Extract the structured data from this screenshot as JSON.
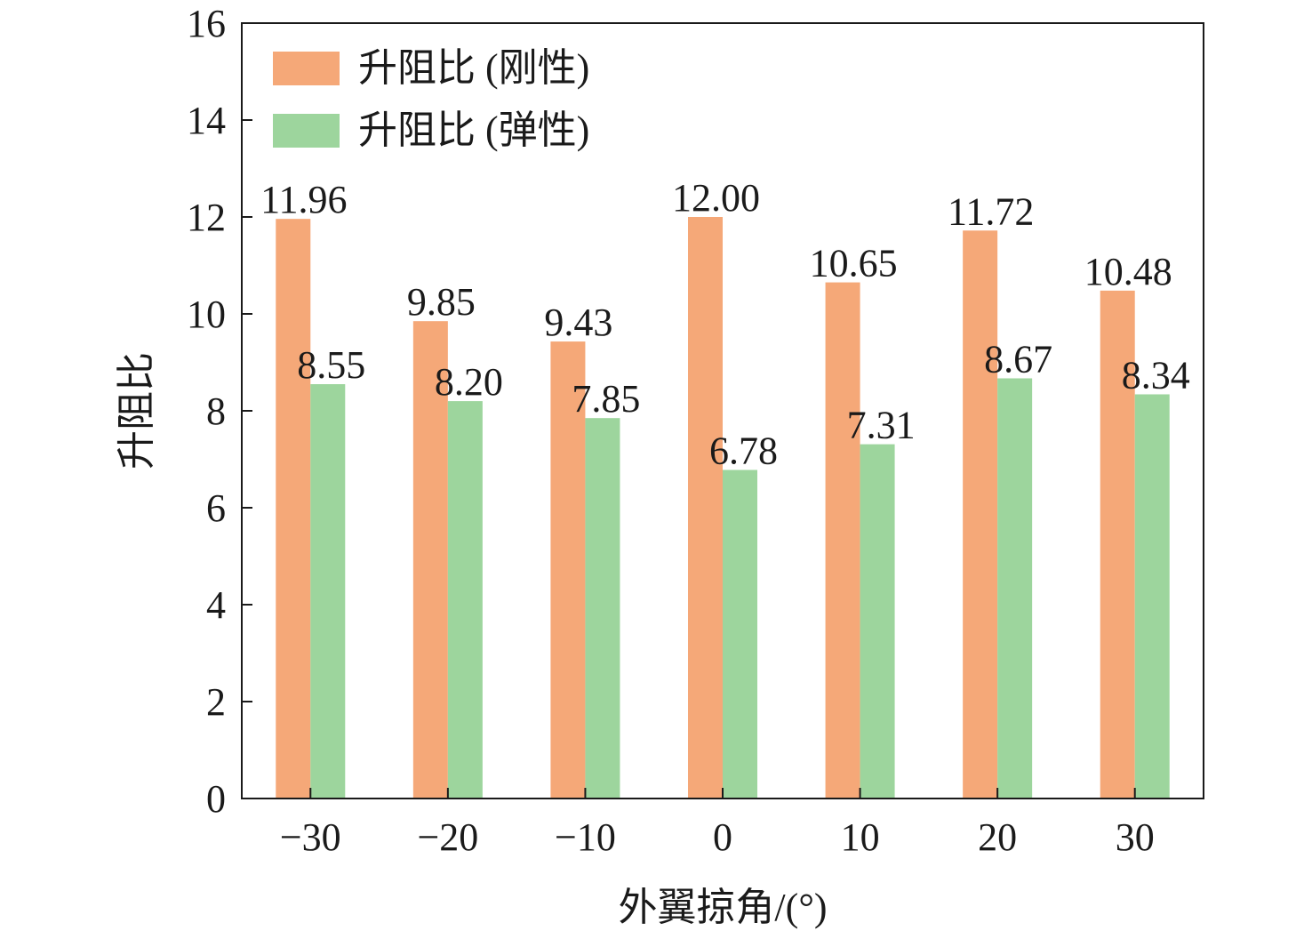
{
  "chart_data": {
    "type": "bar",
    "title": "",
    "xlabel": "外翼掠角/(°)",
    "ylabel": "升阻比",
    "categories": [
      "−30",
      "−20",
      "−10",
      "0",
      "10",
      "20",
      "30"
    ],
    "series": [
      {
        "name": "升阻比 (刚性)",
        "color": "#f5a878",
        "values": [
          11.96,
          9.85,
          9.43,
          12.0,
          10.65,
          11.72,
          10.48
        ],
        "labels": [
          "11.96",
          "9.85",
          "9.43",
          "12.00",
          "10.65",
          "11.72",
          "10.48"
        ]
      },
      {
        "name": "升阻比 (弹性)",
        "color": "#9dd59d",
        "values": [
          8.55,
          8.2,
          7.85,
          6.78,
          7.31,
          8.67,
          8.34
        ],
        "labels": [
          "8.55",
          "8.20",
          "7.85",
          "6.78",
          "7.31",
          "8.67",
          "8.34"
        ]
      }
    ],
    "ylim": [
      0,
      16
    ],
    "yticks": [
      "0",
      "2",
      "4",
      "6",
      "8",
      "10",
      "12",
      "14",
      "16"
    ],
    "legend_position": "top-left",
    "grid": false
  }
}
